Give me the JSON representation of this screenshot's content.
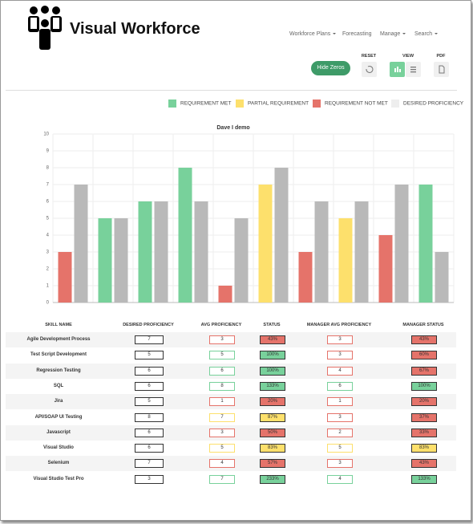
{
  "header": {
    "logo": "Visual Workforce",
    "nav": [
      "Workforce Plans",
      "Forecasting",
      "Manage",
      "Search"
    ],
    "controls": {
      "reset": "RESET",
      "view": "VIEW",
      "pdf": "PDF"
    },
    "button": "Hide Zeros"
  },
  "legend": [
    {
      "name": "REQUIREMENT MET",
      "color": "#78d19b"
    },
    {
      "name": "PARTIAL REQUIREMENT",
      "color": "#fde06c"
    },
    {
      "name": "REQUIREMENT NOT MET",
      "color": "#e5736a"
    },
    {
      "name": "DESIRED PROFICIENCY",
      "color": "#eeeeee"
    }
  ],
  "chart_data": {
    "type": "bar",
    "title": "Dave I demo",
    "categories": [
      null,
      null,
      null,
      null,
      null,
      null,
      null,
      null,
      null,
      null
    ],
    "series": [
      {
        "colors": [
          "#e5736a",
          "#78d19b",
          "#78d19b",
          "#78d19b",
          "#e5736a",
          "#fde06c",
          "#e5736a",
          "#fde06c",
          "#e5736a",
          "#78d19b"
        ],
        "values": [
          3,
          5,
          6,
          8,
          1,
          7,
          3,
          5,
          4,
          7
        ]
      },
      {
        "color": "#b9b9b9",
        "values": [
          7,
          5,
          6,
          6,
          5,
          8,
          6,
          6,
          7,
          3
        ]
      }
    ],
    "ylim": [
      0,
      10
    ],
    "yticks": [
      0,
      1,
      2,
      3,
      4,
      5,
      6,
      7,
      8,
      9,
      10
    ],
    "grid": true
  },
  "table": {
    "columns": [
      "SKILL NAME",
      "DESIRED PROFICIENCY",
      "AVG PROFICIENCY",
      "STATUS",
      "MANAGER AVG PROFICIENCY",
      "MANAGER STATUS"
    ],
    "rows": [
      [
        "Agile Development Process",
        "7",
        "3",
        "43%",
        "3",
        "43%"
      ],
      [
        "Test Script Development",
        "5",
        "5",
        "100%",
        "3",
        "60%"
      ],
      [
        "Regression Testing",
        "6",
        "6",
        "100%",
        "4",
        "67%"
      ],
      [
        "SQL",
        "6",
        "8",
        "133%",
        "6",
        "100%"
      ],
      [
        "Jira",
        "5",
        "1",
        "20%",
        "1",
        "20%"
      ],
      [
        "API/SOAP UI Testing",
        "8",
        "7",
        "87%",
        "3",
        "37%"
      ],
      [
        "Javascript",
        "6",
        "3",
        "50%",
        "2",
        "33%"
      ],
      [
        "Visual Studio",
        "6",
        "5",
        "83%",
        "5",
        "83%"
      ],
      [
        "Selenium",
        "7",
        "4",
        "57%",
        "3",
        "43%"
      ],
      [
        "Visual Studio Test Pro",
        "3",
        "7",
        "233%",
        "4",
        "133%"
      ]
    ],
    "status_colors": [
      [
        "#e5736a",
        "#e5736a"
      ],
      [
        "#78d19b",
        "#e5736a"
      ],
      [
        "#78d19b",
        "#e5736a"
      ],
      [
        "#78d19b",
        "#78d19b"
      ],
      [
        "#e5736a",
        "#e5736a"
      ],
      [
        "#fde06c",
        "#e5736a"
      ],
      [
        "#e5736a",
        "#e5736a"
      ],
      [
        "#fde06c",
        "#fde06c"
      ],
      [
        "#e5736a",
        "#e5736a"
      ],
      [
        "#78d19b",
        "#78d19b"
      ]
    ]
  }
}
